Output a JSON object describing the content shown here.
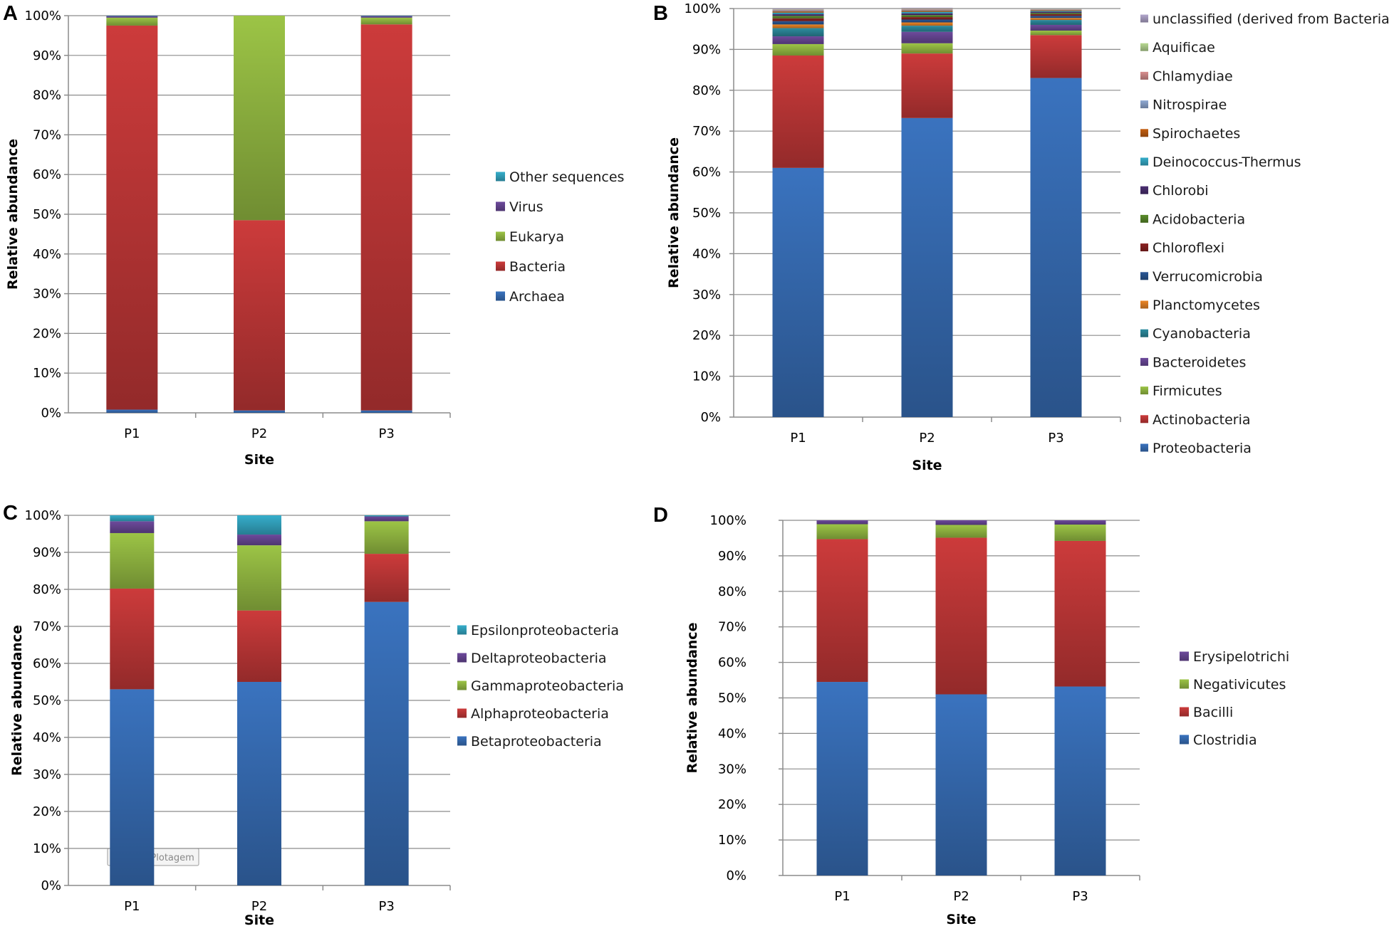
{
  "colors": {
    "blue": "#3a73bf",
    "blue_dark": "#2a5796",
    "red": "#cc3b3b",
    "red_dark": "#9c2424",
    "green": "#9cc446",
    "green_dark": "#6d9a2c",
    "purple": "#6d4a9c",
    "purple_dark": "#4b2f72",
    "cyan": "#36aecb",
    "cyan_dark": "#1f86a2",
    "orange": "#ec8525",
    "orange_dark": "#c45f10",
    "teal": "#2c8ca0",
    "teal_dark": "#1c6576",
    "lightblue": "#90aad4",
    "pink": "#d98f8f",
    "lightgreen": "#b8d993",
    "lavender": "#b2a6cc",
    "darkred": "#8b2222",
    "olive": "#5a8c2b"
  },
  "chart_data": [
    {
      "panel": "A",
      "type": "bar",
      "stacked": true,
      "categories": [
        "P1",
        "P2",
        "P3"
      ],
      "xlabel": "Site",
      "ylabel": "Relative abundance",
      "ylim": [
        0,
        100
      ],
      "yticks": [
        "0%",
        "10%",
        "20%",
        "30%",
        "40%",
        "50%",
        "60%",
        "70%",
        "80%",
        "90%",
        "100%"
      ],
      "legend_position": "right",
      "series": [
        {
          "name": "Archaea",
          "color": "blue",
          "values": [
            0.8,
            0.6,
            0.6
          ]
        },
        {
          "name": "Bacteria",
          "color": "red",
          "values": [
            96.7,
            47.9,
            97.2
          ]
        },
        {
          "name": "Eukarya",
          "color": "green",
          "values": [
            2.0,
            51.5,
            1.7
          ]
        },
        {
          "name": "Virus",
          "color": "purple",
          "values": [
            0.4,
            0.0,
            0.4
          ]
        },
        {
          "name": "Other sequences",
          "color": "cyan",
          "values": [
            0.1,
            0.0,
            0.1
          ]
        }
      ]
    },
    {
      "panel": "B",
      "type": "bar",
      "stacked": true,
      "categories": [
        "P1",
        "P2",
        "P3"
      ],
      "xlabel": "Site",
      "ylabel": "Relative abundance",
      "ylim": [
        0,
        100
      ],
      "yticks": [
        "0%",
        "10%",
        "20%",
        "30%",
        "40%",
        "50%",
        "60%",
        "70%",
        "80%",
        "90%",
        "100%"
      ],
      "legend_position": "right",
      "series": [
        {
          "name": "Proteobacteria",
          "color": "blue",
          "values": [
            61.0,
            73.2,
            83.0
          ]
        },
        {
          "name": "Actinobacteria",
          "color": "red",
          "values": [
            27.5,
            15.8,
            10.5
          ]
        },
        {
          "name": "Firmicutes",
          "color": "green",
          "values": [
            2.8,
            2.5,
            1.1
          ]
        },
        {
          "name": "Bacteroidetes",
          "color": "purple",
          "values": [
            1.9,
            2.8,
            1.4
          ]
        },
        {
          "name": "Cyanobacteria",
          "color": "teal",
          "values": [
            2.0,
            1.5,
            1.2
          ]
        },
        {
          "name": "Planctomycetes",
          "color": "orange",
          "values": [
            0.9,
            0.8,
            0.5
          ]
        },
        {
          "name": "Verrucomicrobia",
          "color": "blue_dark",
          "values": [
            0.8,
            0.7,
            0.5
          ]
        },
        {
          "name": "Chloroflexi",
          "color": "darkred",
          "values": [
            0.7,
            0.6,
            0.4
          ]
        },
        {
          "name": "Acidobacteria",
          "color": "olive",
          "values": [
            0.6,
            0.5,
            0.3
          ]
        },
        {
          "name": "Chlorobi",
          "color": "purple_dark",
          "values": [
            0.4,
            0.4,
            0.3
          ]
        },
        {
          "name": "Deinococcus-Thermus",
          "color": "cyan",
          "values": [
            0.4,
            0.4,
            0.2
          ]
        },
        {
          "name": "Spirochaetes",
          "color": "orange_dark",
          "values": [
            0.3,
            0.3,
            0.2
          ]
        },
        {
          "name": "Nitrospirae",
          "color": "lightblue",
          "values": [
            0.2,
            0.2,
            0.1
          ]
        },
        {
          "name": "Chlamydiae",
          "color": "pink",
          "values": [
            0.2,
            0.2,
            0.1
          ]
        },
        {
          "name": "Aquificae",
          "color": "lightgreen",
          "values": [
            0.1,
            0.1,
            0.1
          ]
        },
        {
          "name": "unclassified (derived from Bacteria)",
          "color": "lavender",
          "values": [
            0.2,
            0.2,
            0.1
          ]
        }
      ]
    },
    {
      "panel": "C",
      "type": "bar",
      "stacked": true,
      "categories": [
        "P1",
        "P2",
        "P3"
      ],
      "xlabel": "Site",
      "ylabel": "Relative abundance",
      "ylim": [
        0,
        100
      ],
      "yticks": [
        "0%",
        "10%",
        "20%",
        "30%",
        "40%",
        "50%",
        "60%",
        "70%",
        "80%",
        "90%",
        "100%"
      ],
      "legend_position": "right",
      "annotation": "Área de Plotagem",
      "series": [
        {
          "name": "Betaproteobacteria",
          "color": "blue",
          "values": [
            53.0,
            55.0,
            76.6
          ]
        },
        {
          "name": "Alphaproteobacteria",
          "color": "red",
          "values": [
            27.2,
            19.3,
            13.0
          ]
        },
        {
          "name": "Gammaproteobacteria",
          "color": "green",
          "values": [
            15.0,
            17.6,
            8.8
          ]
        },
        {
          "name": "Deltaproteobacteria",
          "color": "purple",
          "values": [
            3.2,
            2.9,
            1.3
          ]
        },
        {
          "name": "Epsilonproteobacteria",
          "color": "cyan",
          "values": [
            1.6,
            5.2,
            0.3
          ]
        }
      ]
    },
    {
      "panel": "D",
      "type": "bar",
      "stacked": true,
      "categories": [
        "P1",
        "P2",
        "P3"
      ],
      "xlabel": "Site",
      "ylabel": "Relative abundance",
      "ylim": [
        0,
        100
      ],
      "yticks": [
        "0%",
        "10%",
        "20%",
        "30%",
        "40%",
        "50%",
        "60%",
        "70%",
        "80%",
        "90%",
        "100%"
      ],
      "legend_position": "right",
      "series": [
        {
          "name": "Clostridia",
          "color": "blue",
          "values": [
            54.5,
            51.0,
            53.2
          ]
        },
        {
          "name": "Bacilli",
          "color": "red",
          "values": [
            40.2,
            44.1,
            41.0
          ]
        },
        {
          "name": "Negativicutes",
          "color": "green",
          "values": [
            4.2,
            3.6,
            4.6
          ]
        },
        {
          "name": "Erysipelotrichi",
          "color": "purple",
          "values": [
            1.1,
            1.3,
            1.2
          ]
        }
      ]
    }
  ]
}
